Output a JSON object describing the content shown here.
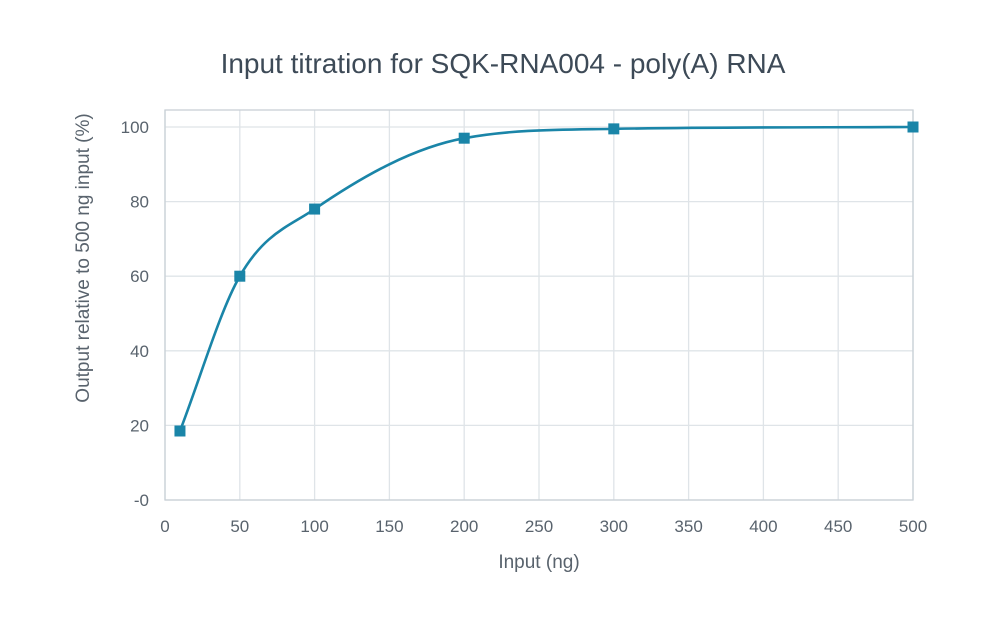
{
  "chart_data": {
    "type": "line",
    "title": "Input titration for SQK-RNA004 - poly(A) RNA",
    "xlabel": "Input (ng)",
    "ylabel": "Output relative to 500 ng input (%)",
    "xlim": [
      0,
      500
    ],
    "ylim": [
      0,
      100
    ],
    "x_ticks": [
      "0",
      "50",
      "100",
      "150",
      "200",
      "250",
      "300",
      "350",
      "400",
      "450",
      "500"
    ],
    "y_ticks": [
      "-0",
      "20",
      "40",
      "60",
      "80",
      "100"
    ],
    "grid": true,
    "line_style": "smoothed",
    "marker": "square",
    "color": "#1a85a8",
    "series": [
      {
        "x": [
          10,
          50,
          100,
          200,
          300,
          500
        ],
        "y": [
          18.5,
          60,
          78,
          97,
          99.5,
          100
        ]
      }
    ]
  }
}
